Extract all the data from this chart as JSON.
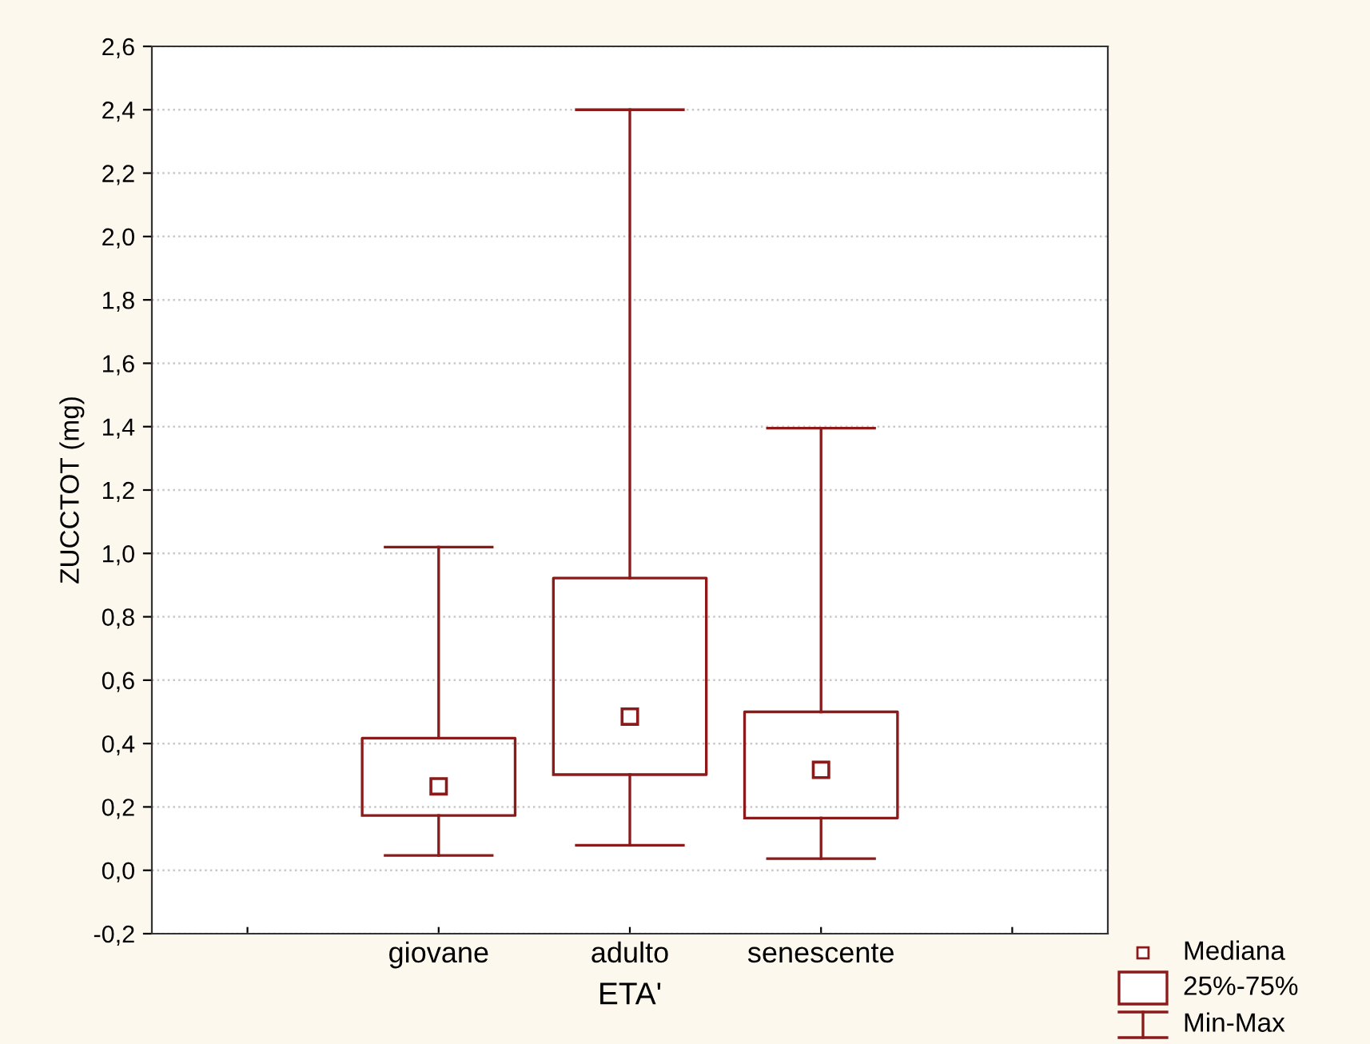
{
  "chart_data": {
    "type": "box",
    "xlabel": "ETA'",
    "ylabel": "ZUCCTOT (mg)",
    "categories": [
      "giovane",
      "adulto",
      "senescente"
    ],
    "color": "#8b1a1a",
    "boxes": [
      {
        "low": 0.047,
        "q1": 0.173,
        "median": 0.265,
        "q3": 0.417,
        "high": 1.02
      },
      {
        "low": 0.079,
        "q1": 0.302,
        "median": 0.485,
        "q3": 0.922,
        "high": 2.4
      },
      {
        "low": 0.037,
        "q1": 0.165,
        "median": 0.317,
        "q3": 0.5,
        "high": 1.395
      }
    ],
    "ylim": [
      -0.2,
      2.6
    ],
    "yticks": [
      {
        "value": -0.2,
        "label": "-0,2"
      },
      {
        "value": 0,
        "label": "0,0"
      },
      {
        "value": 0.2,
        "label": "0,2"
      },
      {
        "value": 0.4,
        "label": "0,4"
      },
      {
        "value": 0.6,
        "label": "0,6"
      },
      {
        "value": 0.8,
        "label": "0,8"
      },
      {
        "value": 1.0,
        "label": "1,0"
      },
      {
        "value": 1.2,
        "label": "1,2"
      },
      {
        "value": 1.4,
        "label": "1,4"
      },
      {
        "value": 1.6,
        "label": "1,6"
      },
      {
        "value": 1.8,
        "label": "1,8"
      },
      {
        "value": 2.0,
        "label": "2,0"
      },
      {
        "value": 2.2,
        "label": "2,2"
      },
      {
        "value": 2.4,
        "label": "2,4"
      },
      {
        "value": 2.6,
        "label": "2,6"
      }
    ],
    "grid": "y",
    "marker": "square",
    "annotations": [
      "Mediana",
      "25%-75%",
      "Min-Max"
    ]
  }
}
